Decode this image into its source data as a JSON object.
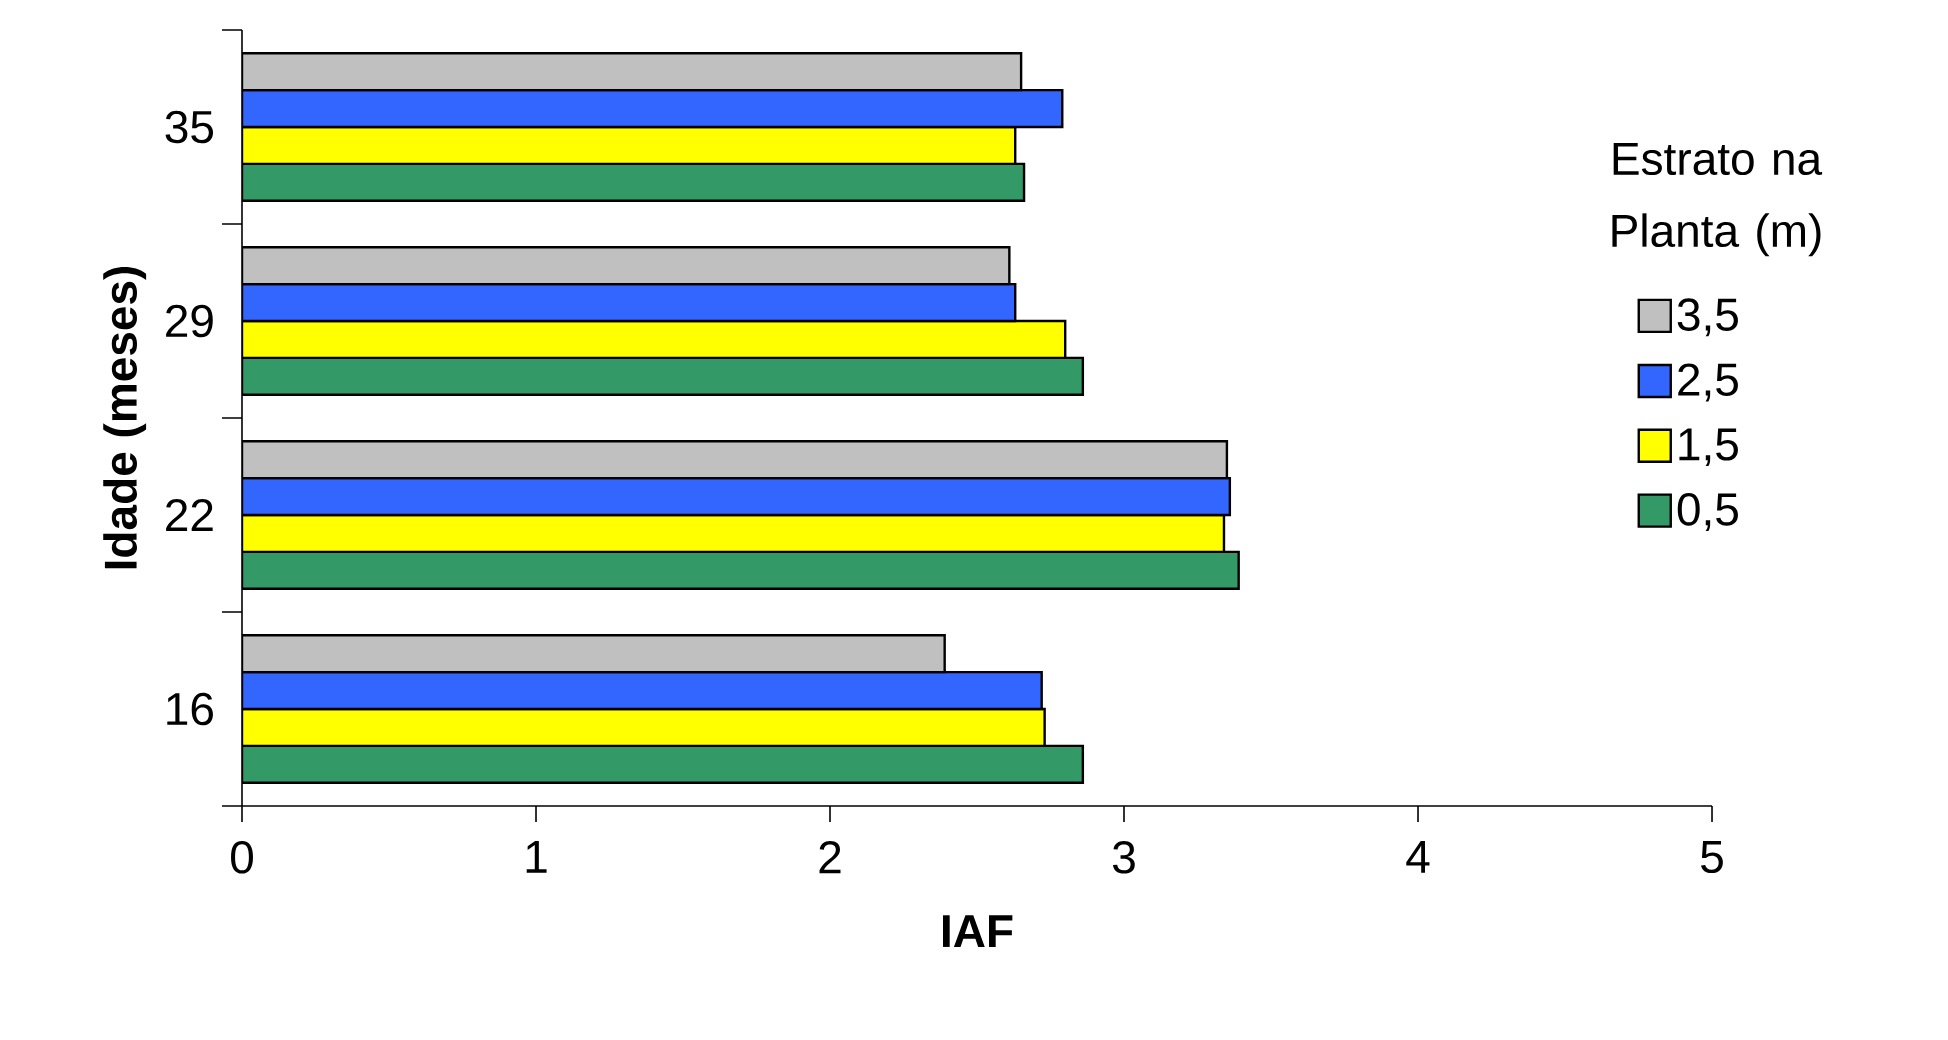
{
  "chart_data": {
    "type": "bar",
    "orientation": "horizontal",
    "xlabel": "IAF",
    "ylabel": "Idade (meses)",
    "legend_title": "Estrato na Planta (m)",
    "categories": [
      "35",
      "29",
      "22",
      "16"
    ],
    "series": [
      {
        "name": "3,5",
        "color": "#c0c0c0",
        "values": [
          2.65,
          2.61,
          3.35,
          2.39
        ]
      },
      {
        "name": "2,5",
        "color": "#3366ff",
        "values": [
          2.79,
          2.63,
          3.36,
          2.72
        ]
      },
      {
        "name": "1,5",
        "color": "#ffff00",
        "values": [
          2.63,
          2.8,
          3.34,
          2.73
        ]
      },
      {
        "name": "0,5",
        "color": "#339966",
        "values": [
          2.66,
          2.86,
          3.39,
          2.86
        ]
      }
    ],
    "xlim": [
      0,
      5
    ],
    "xticks": [
      0,
      1,
      2,
      3,
      4,
      5
    ],
    "grid": false,
    "legend": "right"
  }
}
